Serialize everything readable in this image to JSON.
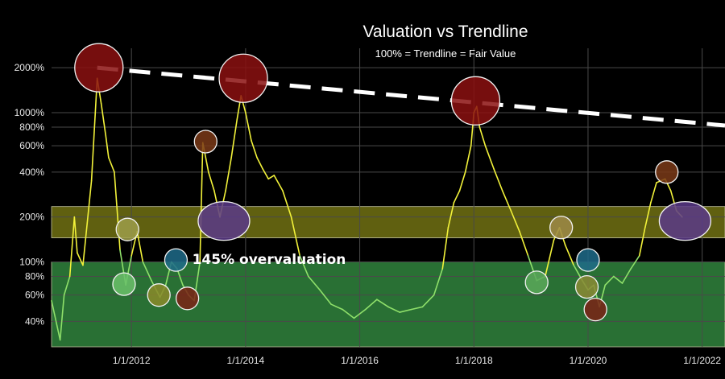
{
  "chart_data": {
    "type": "line",
    "title": "Valuation vs Trendline",
    "subtitle": "100% = Trendline = Fair Value",
    "xlabel": "",
    "ylabel": "",
    "y_scale": "log",
    "ylim": [
      27,
      2700
    ],
    "xlim": [
      2010.6,
      2022.4
    ],
    "x_tick_values": [
      2012,
      2014,
      2016,
      2018,
      2020,
      2022
    ],
    "x_tick_labels": [
      "1/1/2012",
      "1/1/2014",
      "1/1/2016",
      "1/1/2018",
      "1/1/2020",
      "1/1/2022"
    ],
    "y_tick_values": [
      40,
      60,
      80,
      100,
      200,
      400,
      600,
      800,
      1000,
      2000
    ],
    "y_tick_labels": [
      "40%",
      "60%",
      "80%",
      "100%",
      "200%",
      "400%",
      "600%",
      "800%",
      "1000%",
      "2000%"
    ],
    "bands": [
      {
        "name": "fair-value-zone",
        "from": 27,
        "to": 100,
        "color": "#2e7d3a"
      },
      {
        "name": "overvaluation-zone",
        "from": 145,
        "to": 235,
        "color": "#6b6b12"
      }
    ],
    "trendline": {
      "x": [
        2011.4,
        2022.4
      ],
      "y": [
        2000,
        820
      ],
      "color": "#ffffff"
    },
    "annotation": "145% overvaluation",
    "series": [
      {
        "name": "Valuation",
        "color": "#f2f23a",
        "x": [
          2010.6,
          2010.75,
          2010.82,
          2010.92,
          2011.0,
          2011.05,
          2011.15,
          2011.3,
          2011.4,
          2011.47,
          2011.55,
          2011.6,
          2011.7,
          2011.8,
          2011.9,
          2012.0,
          2012.1,
          2012.2,
          2012.35,
          2012.5,
          2012.6,
          2012.7,
          2012.8,
          2012.9,
          2013.0,
          2013.1,
          2013.2,
          2013.25,
          2013.35,
          2013.45,
          2013.55,
          2013.65,
          2013.75,
          2013.85,
          2013.92,
          2014.0,
          2014.1,
          2014.2,
          2014.3,
          2014.4,
          2014.5,
          2014.65,
          2014.8,
          2014.95,
          2015.1,
          2015.3,
          2015.5,
          2015.7,
          2015.9,
          2016.1,
          2016.3,
          2016.5,
          2016.7,
          2016.9,
          2017.1,
          2017.3,
          2017.45,
          2017.55,
          2017.65,
          2017.75,
          2017.85,
          2017.95,
          2018.0,
          2018.05,
          2018.1,
          2018.2,
          2018.35,
          2018.5,
          2018.65,
          2018.8,
          2018.95,
          2019.1,
          2019.25,
          2019.4,
          2019.5,
          2019.6,
          2019.75,
          2019.9,
          2020.0,
          2020.1,
          2020.2,
          2020.3,
          2020.45,
          2020.6,
          2020.75,
          2020.9,
          2021.0,
          2021.1,
          2021.2,
          2021.28,
          2021.35,
          2021.45,
          2021.55,
          2021.65
        ],
        "y": [
          55,
          30,
          60,
          80,
          200,
          115,
          95,
          350,
          1700,
          1150,
          700,
          500,
          400,
          120,
          70,
          110,
          160,
          100,
          75,
          58,
          70,
          100,
          90,
          70,
          60,
          55,
          100,
          630,
          400,
          300,
          200,
          300,
          500,
          900,
          1300,
          1000,
          650,
          500,
          420,
          360,
          380,
          300,
          200,
          110,
          80,
          65,
          52,
          48,
          42,
          48,
          56,
          50,
          46,
          48,
          50,
          60,
          90,
          170,
          250,
          300,
          400,
          600,
          1000,
          1100,
          800,
          600,
          420,
          300,
          220,
          160,
          110,
          75,
          80,
          140,
          170,
          130,
          95,
          75,
          65,
          70,
          50,
          70,
          80,
          72,
          90,
          110,
          170,
          250,
          340,
          350,
          360,
          300,
          220,
          200
        ]
      }
    ],
    "markers": [
      {
        "x": 2011.43,
        "y": 2000,
        "color": "#8b1010"
      },
      {
        "x": 2011.93,
        "y": 165,
        "color": "#9d9d4a"
      },
      {
        "x": 2011.87,
        "y": 71,
        "color": "#6abf6a"
      },
      {
        "x": 2012.48,
        "y": 60,
        "color": "#8a8a2a"
      },
      {
        "x": 2012.78,
        "y": 103,
        "color": "#1f6b8a"
      },
      {
        "x": 2012.98,
        "y": 57,
        "color": "#7a2216"
      },
      {
        "x": 2013.3,
        "y": 640,
        "color": "#7a3a18"
      },
      {
        "x": 2013.62,
        "y": 188,
        "color": "#5a3a88"
      },
      {
        "x": 2013.96,
        "y": 1700,
        "color": "#8b1010"
      },
      {
        "x": 2018.03,
        "y": 1200,
        "color": "#8b1010"
      },
      {
        "x": 2019.1,
        "y": 73,
        "color": "#5aa85a"
      },
      {
        "x": 2019.53,
        "y": 170,
        "color": "#9d8a48"
      },
      {
        "x": 2020.0,
        "y": 103,
        "color": "#1f6b8a"
      },
      {
        "x": 2019.98,
        "y": 68,
        "color": "#8a8a35"
      },
      {
        "x": 2020.13,
        "y": 48,
        "color": "#7a2216"
      },
      {
        "x": 2021.38,
        "y": 400,
        "color": "#7a3a18"
      },
      {
        "x": 2021.7,
        "y": 188,
        "color": "#5a3a88"
      }
    ]
  }
}
